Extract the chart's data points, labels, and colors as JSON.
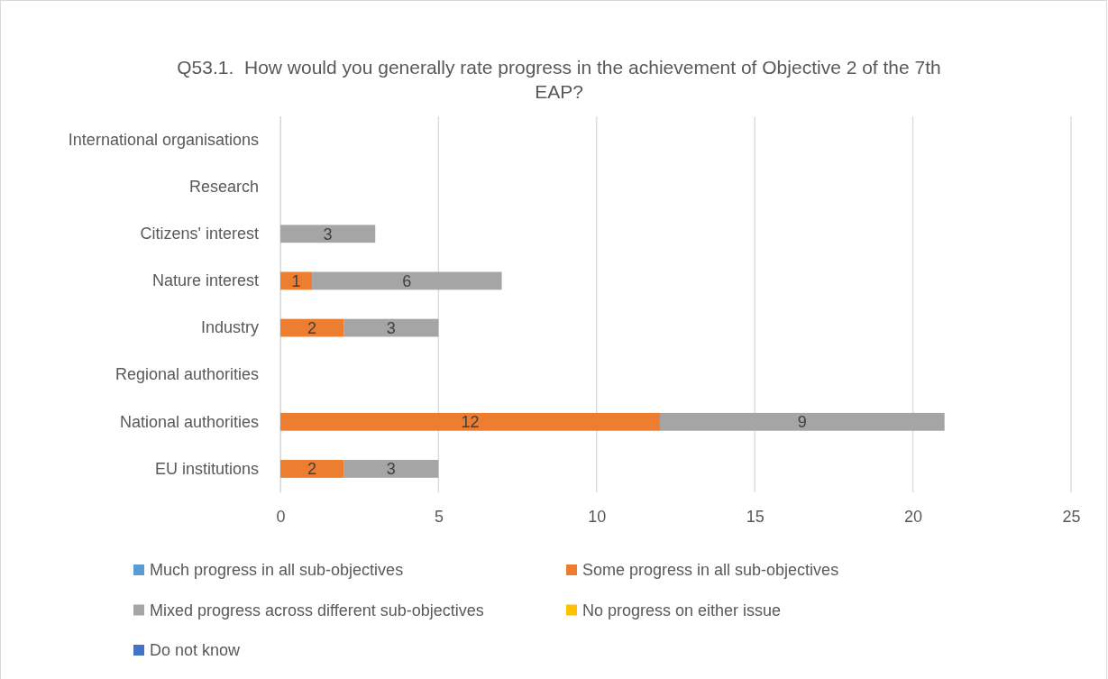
{
  "chart_data": {
    "type": "bar",
    "orientation": "horizontal",
    "stacked": true,
    "title": "Q53.1.  How would you generally rate progress in the achievement of Objective 2 of the 7th EAP?",
    "categories": [
      "International organisations",
      "Research",
      "Citizens' interest",
      "Nature interest",
      "Industry",
      "Regional authorities",
      "National authorities",
      "EU institutions"
    ],
    "series": [
      {
        "name": "Much progress in all sub-objectives",
        "color": "#5b9bd5",
        "values": [
          null,
          null,
          null,
          null,
          null,
          null,
          null,
          null
        ]
      },
      {
        "name": "Some progress in all sub-objectives",
        "color": "#ed7d31",
        "values": [
          null,
          null,
          null,
          1,
          2,
          null,
          12,
          2
        ]
      },
      {
        "name": "Mixed progress across different sub-objectives",
        "color": "#a5a5a5",
        "values": [
          null,
          null,
          3,
          6,
          3,
          null,
          9,
          3
        ]
      },
      {
        "name": "No progress on either issue",
        "color": "#ffc000",
        "values": [
          null,
          null,
          null,
          null,
          null,
          null,
          null,
          null
        ]
      },
      {
        "name": "Do not know",
        "color": "#4472c4",
        "values": [
          null,
          null,
          null,
          null,
          null,
          null,
          null,
          null
        ]
      }
    ],
    "xlim": [
      0,
      25
    ],
    "xticks": [
      0,
      5,
      10,
      15,
      20,
      25
    ],
    "grid": "x",
    "legend": "bottom",
    "data_labels": true
  }
}
